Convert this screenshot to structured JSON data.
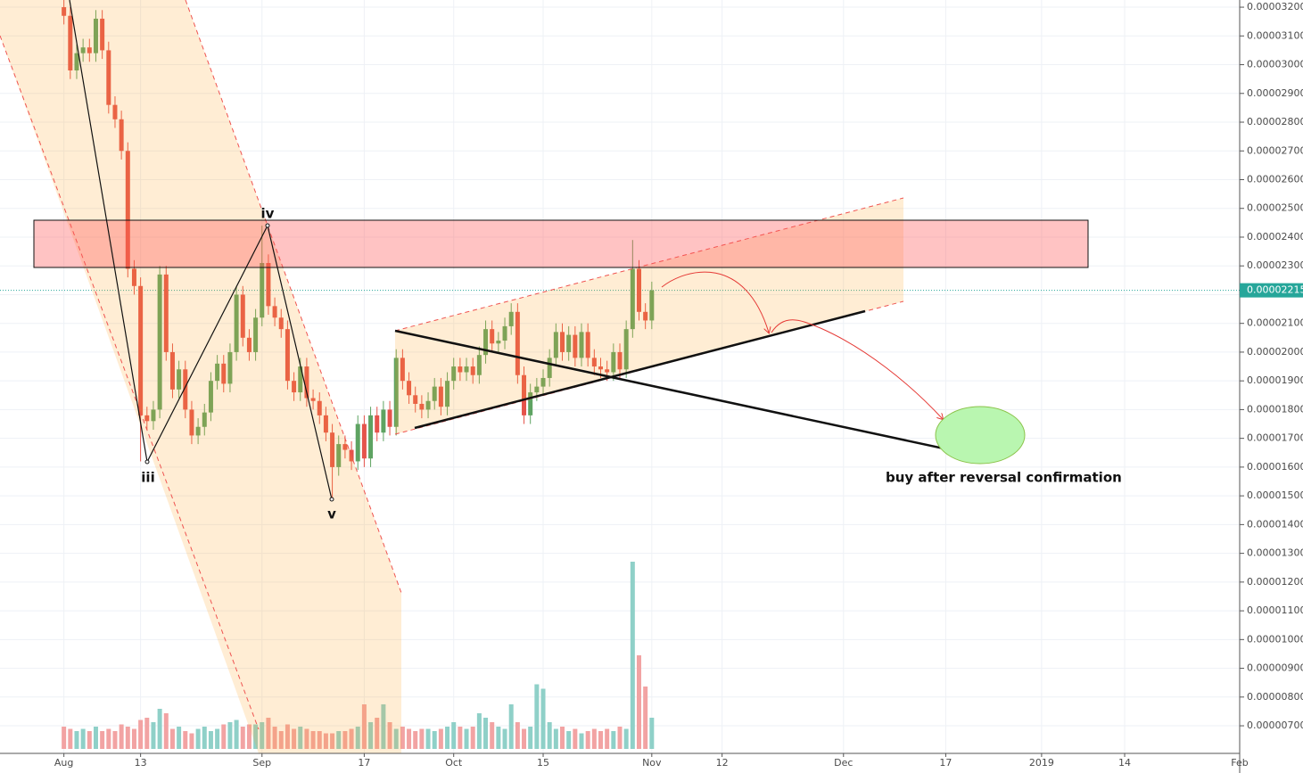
{
  "chart_data": {
    "type": "candlestick",
    "x": [
      0,
      1,
      2,
      3,
      4,
      5,
      6,
      7,
      8,
      9,
      10,
      11,
      12,
      13,
      14,
      15,
      16,
      17,
      18,
      19,
      20,
      21,
      22,
      23,
      24,
      25,
      26,
      27,
      28,
      29,
      30,
      31,
      32,
      33,
      34,
      35,
      36,
      37,
      38,
      39,
      40,
      41,
      42,
      43,
      44,
      45,
      46,
      47,
      48,
      49,
      50,
      51,
      52,
      53,
      54,
      55,
      56,
      57,
      58,
      59,
      60,
      61,
      62,
      63,
      64,
      65,
      66,
      67,
      68,
      69,
      70,
      71,
      72,
      73,
      74,
      75,
      76,
      77,
      78,
      79,
      80,
      81,
      82,
      83,
      84,
      85,
      86,
      87,
      88,
      89,
      90,
      91,
      92
    ],
    "open": [
      3.2e-05,
      3.17e-05,
      2.98e-05,
      3.04e-05,
      3.06e-05,
      3.04e-05,
      3.16e-05,
      3.05e-05,
      2.86e-05,
      2.81e-05,
      2.7e-05,
      2.29e-05,
      2.23e-05,
      1.78e-05,
      1.76e-05,
      1.8e-05,
      2.27e-05,
      2e-05,
      1.87e-05,
      1.94e-05,
      1.8e-05,
      1.71e-05,
      1.74e-05,
      1.79e-05,
      1.9e-05,
      1.96e-05,
      1.89e-05,
      2e-05,
      2.2e-05,
      2.05e-05,
      2e-05,
      2.12e-05,
      2.31e-05,
      2.16e-05,
      2.12e-05,
      2.08e-05,
      1.9e-05,
      1.86e-05,
      1.95e-05,
      1.84e-05,
      1.83e-05,
      1.78e-05,
      1.72e-05,
      1.6e-05,
      1.68e-05,
      1.66e-05,
      1.62e-05,
      1.75e-05,
      1.63e-05,
      1.78e-05,
      1.72e-05,
      1.8e-05,
      1.74e-05,
      1.98e-05,
      1.9e-05,
      1.85e-05,
      1.82e-05,
      1.8e-05,
      1.83e-05,
      1.88e-05,
      1.81e-05,
      1.9e-05,
      1.95e-05,
      1.93e-05,
      1.95e-05,
      1.92e-05,
      1.99e-05,
      2.08e-05,
      2.03e-05,
      2.04e-05,
      2.09e-05,
      2.14e-05,
      1.92e-05,
      1.78e-05,
      1.86e-05,
      1.88e-05,
      1.91e-05,
      1.98e-05,
      2.07e-05,
      2e-05,
      2.06e-05,
      1.98e-05,
      2.07e-05,
      1.98e-05,
      1.95e-05,
      1.94e-05,
      1.93e-05,
      2e-05,
      1.94e-05,
      2.08e-05,
      2.29e-05,
      2.14e-05,
      2.11e-05
    ],
    "high": [
      3.24e-05,
      3.2e-05,
      3.07e-05,
      3.09e-05,
      3.09e-05,
      3.19e-05,
      3.19e-05,
      3.08e-05,
      2.89e-05,
      2.84e-05,
      2.73e-05,
      2.32e-05,
      2.26e-05,
      1.81e-05,
      1.83e-05,
      2.3e-05,
      2.3e-05,
      2.03e-05,
      1.97e-05,
      1.97e-05,
      1.83e-05,
      1.77e-05,
      1.82e-05,
      1.93e-05,
      1.99e-05,
      1.99e-05,
      2.03e-05,
      2.23e-05,
      2.23e-05,
      2.08e-05,
      2.15e-05,
      2.44e-05,
      2.34e-05,
      2.19e-05,
      2.15e-05,
      2.11e-05,
      1.93e-05,
      1.98e-05,
      1.98e-05,
      1.87e-05,
      1.86e-05,
      1.81e-05,
      1.75e-05,
      1.71e-05,
      1.71e-05,
      1.69e-05,
      1.78e-05,
      1.78e-05,
      1.81e-05,
      1.81e-05,
      1.83e-05,
      1.83e-05,
      2.01e-05,
      2.01e-05,
      1.93e-05,
      1.88e-05,
      1.85e-05,
      1.86e-05,
      1.91e-05,
      1.91e-05,
      1.93e-05,
      1.98e-05,
      1.98e-05,
      1.98e-05,
      1.98e-05,
      2.02e-05,
      2.11e-05,
      2.11e-05,
      2.07e-05,
      2.12e-05,
      2.17e-05,
      2.17e-05,
      1.95e-05,
      1.89e-05,
      1.91e-05,
      1.94e-05,
      2.01e-05,
      2.1e-05,
      2.1e-05,
      2.09e-05,
      2.09e-05,
      2.1e-05,
      2.1e-05,
      2.01e-05,
      1.98e-05,
      1.97e-05,
      2.03e-05,
      2.03e-05,
      2.11e-05,
      2.39e-05,
      2.32e-05,
      2.17e-05,
      2.245e-05
    ],
    "low": [
      3.14e-05,
      2.95e-05,
      2.95e-05,
      3.01e-05,
      3.01e-05,
      3.01e-05,
      3.02e-05,
      2.83e-05,
      2.78e-05,
      2.67e-05,
      2.26e-05,
      2.2e-05,
      1.62e-05,
      1.73e-05,
      1.73e-05,
      1.77e-05,
      1.97e-05,
      1.84e-05,
      1.84e-05,
      1.77e-05,
      1.68e-05,
      1.68e-05,
      1.71e-05,
      1.76e-05,
      1.87e-05,
      1.86e-05,
      1.86e-05,
      1.97e-05,
      2.02e-05,
      1.97e-05,
      1.97e-05,
      2.09e-05,
      2.13e-05,
      2.09e-05,
      2.05e-05,
      1.87e-05,
      1.83e-05,
      1.83e-05,
      1.81e-05,
      1.8e-05,
      1.75e-05,
      1.69e-05,
      1.49e-05,
      1.57e-05,
      1.63e-05,
      1.59e-05,
      1.59e-05,
      1.6e-05,
      1.6e-05,
      1.69e-05,
      1.69e-05,
      1.71e-05,
      1.71e-05,
      1.87e-05,
      1.82e-05,
      1.79e-05,
      1.77e-05,
      1.77e-05,
      1.8e-05,
      1.78e-05,
      1.78e-05,
      1.87e-05,
      1.9e-05,
      1.9e-05,
      1.89e-05,
      1.89e-05,
      1.96e-05,
      2e-05,
      2e-05,
      2.01e-05,
      2.06e-05,
      1.89e-05,
      1.75e-05,
      1.75e-05,
      1.83e-05,
      1.85e-05,
      1.88e-05,
      1.95e-05,
      1.97e-05,
      1.97e-05,
      1.95e-05,
      1.95e-05,
      1.95e-05,
      1.92e-05,
      1.91e-05,
      1.9e-05,
      1.9e-05,
      1.91e-05,
      1.91e-05,
      2.05e-05,
      2.11e-05,
      2.08e-05,
      2.08e-05
    ],
    "close": [
      3.17e-05,
      2.98e-05,
      3.04e-05,
      3.06e-05,
      3.04e-05,
      3.16e-05,
      3.05e-05,
      2.86e-05,
      2.81e-05,
      2.7e-05,
      2.29e-05,
      2.23e-05,
      1.78e-05,
      1.76e-05,
      1.8e-05,
      2.27e-05,
      2e-05,
      1.87e-05,
      1.94e-05,
      1.8e-05,
      1.71e-05,
      1.74e-05,
      1.79e-05,
      1.9e-05,
      1.96e-05,
      1.89e-05,
      2e-05,
      2.2e-05,
      2.05e-05,
      2e-05,
      2.12e-05,
      2.31e-05,
      2.16e-05,
      2.12e-05,
      2.08e-05,
      1.9e-05,
      1.86e-05,
      1.95e-05,
      1.84e-05,
      1.83e-05,
      1.78e-05,
      1.72e-05,
      1.6e-05,
      1.68e-05,
      1.66e-05,
      1.62e-05,
      1.75e-05,
      1.63e-05,
      1.78e-05,
      1.72e-05,
      1.8e-05,
      1.74e-05,
      1.98e-05,
      1.9e-05,
      1.85e-05,
      1.82e-05,
      1.8e-05,
      1.83e-05,
      1.88e-05,
      1.81e-05,
      1.9e-05,
      1.95e-05,
      1.93e-05,
      1.95e-05,
      1.92e-05,
      1.99e-05,
      2.08e-05,
      2.03e-05,
      2.04e-05,
      2.09e-05,
      2.14e-05,
      1.92e-05,
      1.78e-05,
      1.86e-05,
      1.88e-05,
      1.91e-05,
      1.98e-05,
      2.07e-05,
      2e-05,
      2.06e-05,
      1.98e-05,
      2.07e-05,
      1.98e-05,
      1.95e-05,
      1.94e-05,
      1.93e-05,
      2e-05,
      1.94e-05,
      2.08e-05,
      2.29e-05,
      2.14e-05,
      2.11e-05,
      2.215e-05
    ],
    "volume": [
      10,
      9,
      8,
      9,
      8,
      10,
      8,
      9,
      8,
      11,
      10,
      9,
      13,
      14,
      12,
      18,
      16,
      9,
      10,
      8,
      7,
      9,
      10,
      8,
      9,
      11,
      12,
      13,
      10,
      11,
      11,
      12,
      14,
      10,
      8,
      11,
      9,
      10,
      9,
      8,
      8,
      7,
      7,
      8,
      8,
      9,
      10,
      20,
      12,
      14,
      20,
      12,
      9,
      10,
      9,
      8,
      9,
      9,
      8,
      9,
      10,
      12,
      10,
      9,
      10,
      16,
      14,
      12,
      10,
      9,
      20,
      12,
      9,
      10,
      29,
      27,
      12,
      9,
      10,
      8,
      9,
      7,
      8,
      9,
      8,
      9,
      8,
      10,
      9,
      84,
      42,
      28,
      14
    ],
    "vlim": [
      0,
      100
    ],
    "up_color": "#5ea362",
    "down_color": "#e5534b",
    "volume_up_color": "#8fd0c8",
    "volume_down_color": "#f2a3a3",
    "last_price": 2.215e-05,
    "last_price_color": "#26a69a",
    "xlim": [
      -10,
      184
    ],
    "xticks": [
      {
        "value": 0,
        "label": "Aug"
      },
      {
        "value": 12,
        "label": "13"
      },
      {
        "value": 31,
        "label": "Sep"
      },
      {
        "value": 47,
        "label": "17"
      },
      {
        "value": 61,
        "label": "Oct"
      },
      {
        "value": 75,
        "label": "15"
      },
      {
        "value": 92,
        "label": "Nov"
      },
      {
        "value": 103,
        "label": "12"
      },
      {
        "value": 122,
        "label": "Dec"
      },
      {
        "value": 138,
        "label": "17"
      },
      {
        "value": 153,
        "label": "2019"
      },
      {
        "value": 166,
        "label": "14"
      },
      {
        "value": 184,
        "label": "Feb"
      }
    ],
    "ylim": [
      6.04e-06,
      3.225e-05
    ],
    "yticks": [
      {
        "value": 7e-06,
        "label": "0.00000700"
      },
      {
        "value": 8e-06,
        "label": "0.00000800"
      },
      {
        "value": 9e-06,
        "label": "0.00000900"
      },
      {
        "value": 1e-05,
        "label": "0.00001000"
      },
      {
        "value": 1.1e-05,
        "label": "0.00001100"
      },
      {
        "value": 1.2e-05,
        "label": "0.00001200"
      },
      {
        "value": 1.3e-05,
        "label": "0.00001300"
      },
      {
        "value": 1.4e-05,
        "label": "0.00001400"
      },
      {
        "value": 1.5e-05,
        "label": "0.00001500"
      },
      {
        "value": 1.6e-05,
        "label": "0.00001600"
      },
      {
        "value": 1.7e-05,
        "label": "0.00001700"
      },
      {
        "value": 1.8e-05,
        "label": "0.00001800"
      },
      {
        "value": 1.9e-05,
        "label": "0.00001900"
      },
      {
        "value": 2e-05,
        "label": "0.00002000"
      },
      {
        "value": 2.1e-05,
        "label": "0.00002100"
      },
      {
        "value": 2.2e-05,
        "label": "0.00002200"
      },
      {
        "value": 2.3e-05,
        "label": "0.00002300"
      },
      {
        "value": 2.4e-05,
        "label": "0.00002400"
      },
      {
        "value": 2.5e-05,
        "label": "0.00002500"
      },
      {
        "value": 2.6e-05,
        "label": "0.00002600"
      },
      {
        "value": 2.7e-05,
        "label": "0.00002700"
      },
      {
        "value": 2.8e-05,
        "label": "0.00002800"
      },
      {
        "value": 2.9e-05,
        "label": "0.00002900"
      },
      {
        "value": 3e-05,
        "label": "0.00003000"
      },
      {
        "value": 3.1e-05,
        "label": "0.00003100"
      },
      {
        "value": 3.2e-05,
        "label": "0.00003200"
      }
    ],
    "grid": true,
    "annotations": [
      "iii",
      "iv",
      "v",
      "buy after reversal confirmation"
    ]
  }
}
